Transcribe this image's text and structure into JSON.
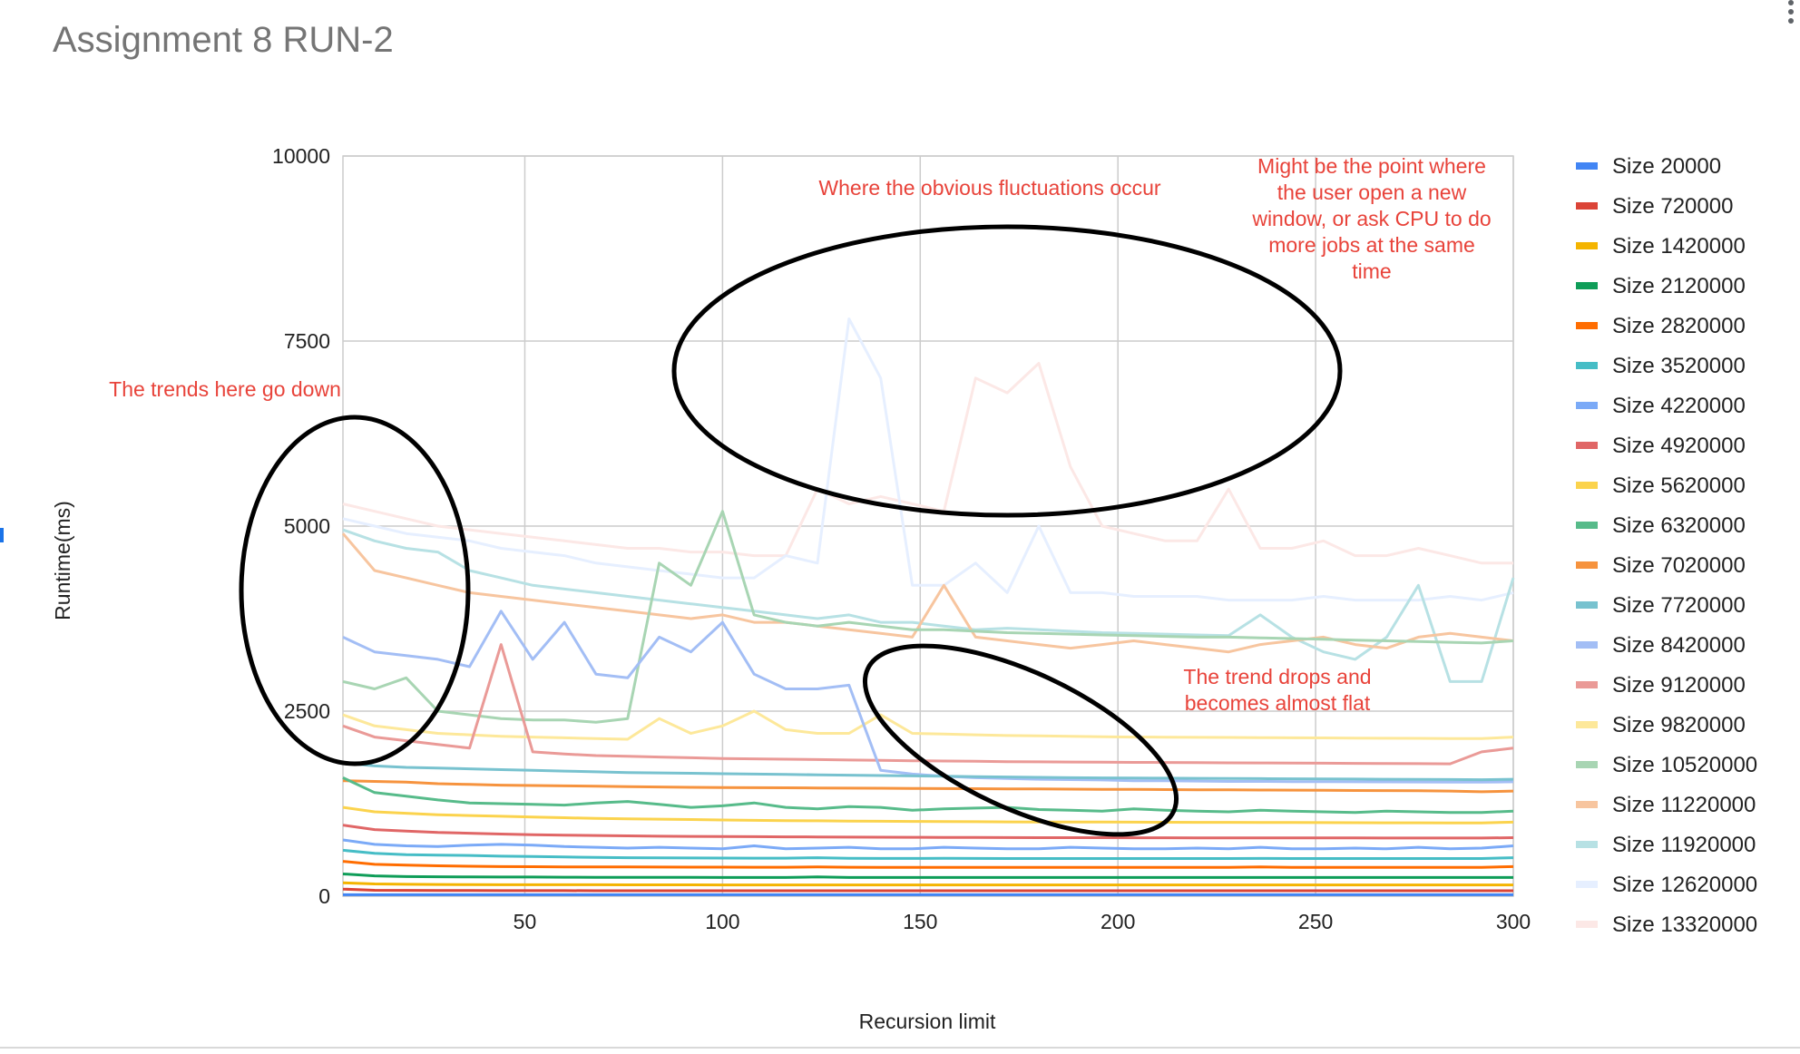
{
  "chart_data": {
    "type": "line",
    "title": "Assignment 8 RUN-2",
    "xlabel": "Recursion limit",
    "ylabel": "Runtime(ms)",
    "xlim": [
      4,
      300
    ],
    "ylim": [
      0,
      10000
    ],
    "xticks": [
      50,
      100,
      150,
      200,
      250,
      300
    ],
    "yticks": [
      0,
      2500,
      5000,
      7500,
      10000
    ],
    "grid": true,
    "legend_position": "right",
    "x_sample_step": 8,
    "x_sample_start": 4,
    "series": [
      {
        "name": "Size 20000",
        "color": "#4285f4",
        "values": [
          20,
          20,
          20,
          20,
          20,
          20,
          20,
          20,
          20,
          20,
          20,
          20,
          20,
          20,
          20,
          20,
          20,
          20,
          20,
          20,
          20,
          20,
          20,
          20,
          20,
          20,
          20,
          20,
          20,
          20,
          20,
          20,
          20,
          20,
          20,
          20,
          20,
          20
        ]
      },
      {
        "name": "Size 720000",
        "color": "#db4437",
        "values": [
          95,
          80,
          78,
          77,
          76,
          75,
          75,
          75,
          74,
          74,
          74,
          74,
          74,
          74,
          74,
          74,
          74,
          74,
          74,
          74,
          74,
          74,
          74,
          74,
          74,
          74,
          74,
          74,
          74,
          74,
          74,
          74,
          74,
          74,
          74,
          74,
          74,
          74
        ]
      },
      {
        "name": "Size 1420000",
        "color": "#f4b400",
        "values": [
          180,
          165,
          160,
          158,
          156,
          155,
          155,
          154,
          154,
          153,
          153,
          153,
          152,
          152,
          152,
          152,
          152,
          152,
          152,
          152,
          152,
          152,
          152,
          152,
          152,
          152,
          152,
          152,
          152,
          152,
          152,
          152,
          152,
          152,
          152,
          152,
          152,
          152
        ]
      },
      {
        "name": "Size 2120000",
        "color": "#0f9d58",
        "values": [
          300,
          275,
          265,
          262,
          260,
          258,
          258,
          256,
          255,
          255,
          254,
          254,
          253,
          253,
          253,
          260,
          253,
          252,
          252,
          252,
          252,
          252,
          252,
          252,
          252,
          252,
          252,
          252,
          252,
          252,
          252,
          252,
          252,
          252,
          252,
          252,
          252,
          252
        ]
      },
      {
        "name": "Size 2820000",
        "color": "#ff6d01",
        "values": [
          470,
          430,
          420,
          410,
          405,
          400,
          398,
          396,
          395,
          394,
          393,
          392,
          392,
          391,
          391,
          395,
          391,
          390,
          390,
          390,
          390,
          390,
          390,
          390,
          390,
          390,
          390,
          390,
          390,
          395,
          390,
          390,
          390,
          390,
          390,
          390,
          390,
          400
        ]
      },
      {
        "name": "Size 3520000",
        "color": "#46bdc6",
        "values": [
          620,
          580,
          560,
          555,
          550,
          540,
          535,
          530,
          525,
          520,
          518,
          516,
          515,
          514,
          513,
          520,
          512,
          510,
          510,
          512,
          510,
          508,
          508,
          508,
          508,
          508,
          508,
          508,
          508,
          510,
          508,
          508,
          508,
          508,
          508,
          508,
          508,
          520
        ]
      },
      {
        "name": "Size 4220000",
        "color": "#7baaf7",
        "values": [
          760,
          700,
          680,
          670,
          690,
          700,
          690,
          670,
          660,
          650,
          660,
          650,
          640,
          680,
          640,
          650,
          660,
          640,
          640,
          660,
          650,
          640,
          640,
          660,
          650,
          640,
          640,
          650,
          640,
          660,
          640,
          640,
          650,
          640,
          660,
          640,
          650,
          680
        ]
      },
      {
        "name": "Size 4920000",
        "color": "#e06666",
        "values": [
          960,
          900,
          880,
          860,
          850,
          840,
          830,
          825,
          820,
          815,
          810,
          808,
          806,
          804,
          802,
          800,
          798,
          796,
          795,
          794,
          793,
          792,
          791,
          790,
          790,
          789,
          789,
          788,
          788,
          788,
          787,
          787,
          787,
          786,
          786,
          786,
          786,
          790
        ]
      },
      {
        "name": "Size 5620000",
        "color": "#fbd34d",
        "values": [
          1200,
          1140,
          1120,
          1100,
          1090,
          1080,
          1070,
          1060,
          1050,
          1045,
          1040,
          1035,
          1030,
          1025,
          1020,
          1018,
          1015,
          1012,
          1010,
          1008,
          1006,
          1004,
          1003,
          1002,
          1001,
          1000,
          999,
          998,
          997,
          996,
          995,
          994,
          993,
          992,
          991,
          990,
          990,
          1000
        ]
      },
      {
        "name": "Size 6320000",
        "color": "#57bb8a",
        "values": [
          1600,
          1400,
          1350,
          1300,
          1260,
          1250,
          1240,
          1230,
          1260,
          1280,
          1240,
          1200,
          1220,
          1260,
          1200,
          1180,
          1210,
          1200,
          1160,
          1180,
          1190,
          1200,
          1170,
          1160,
          1150,
          1180,
          1160,
          1150,
          1140,
          1160,
          1150,
          1140,
          1130,
          1150,
          1140,
          1130,
          1130,
          1150
        ]
      },
      {
        "name": "Size 7020000",
        "color": "#f6933e",
        "values": [
          1560,
          1550,
          1540,
          1520,
          1510,
          1500,
          1495,
          1490,
          1485,
          1480,
          1475,
          1470,
          1468,
          1466,
          1464,
          1462,
          1460,
          1458,
          1456,
          1454,
          1452,
          1450,
          1448,
          1446,
          1444,
          1442,
          1440,
          1438,
          1436,
          1434,
          1432,
          1430,
          1428,
          1426,
          1424,
          1420,
          1410,
          1420
        ]
      },
      {
        "name": "Size 7720000",
        "color": "#78c2cf",
        "values": [
          1800,
          1760,
          1740,
          1730,
          1720,
          1710,
          1700,
          1690,
          1680,
          1670,
          1665,
          1660,
          1655,
          1650,
          1645,
          1640,
          1635,
          1630,
          1625,
          1620,
          1615,
          1610,
          1605,
          1600,
          1598,
          1596,
          1594,
          1592,
          1590,
          1588,
          1586,
          1584,
          1582,
          1580,
          1578,
          1576,
          1574,
          1580
        ]
      },
      {
        "name": "Size 8420000",
        "color": "#a3bef5",
        "values": [
          3500,
          3300,
          3250,
          3200,
          3100,
          3850,
          3200,
          3700,
          3000,
          2950,
          3500,
          3300,
          3700,
          3000,
          2800,
          2800,
          2850,
          1700,
          1650,
          1620,
          1600,
          1590,
          1580,
          1575,
          1570,
          1560,
          1560,
          1555,
          1550,
          1550,
          1548,
          1546,
          1545,
          1544,
          1543,
          1542,
          1541,
          1545
        ]
      },
      {
        "name": "Size 9120000",
        "color": "#ea9a97",
        "values": [
          2300,
          2150,
          2100,
          2050,
          2000,
          3400,
          1950,
          1920,
          1900,
          1890,
          1880,
          1870,
          1860,
          1855,
          1850,
          1845,
          1840,
          1835,
          1830,
          1826,
          1822,
          1818,
          1815,
          1812,
          1810,
          1808,
          1806,
          1804,
          1802,
          1800,
          1798,
          1796,
          1794,
          1792,
          1790,
          1788,
          1950,
          2000
        ]
      },
      {
        "name": "Size 9820000",
        "color": "#fde89a",
        "values": [
          2450,
          2300,
          2250,
          2200,
          2180,
          2160,
          2150,
          2140,
          2130,
          2120,
          2400,
          2200,
          2300,
          2500,
          2250,
          2200,
          2200,
          2450,
          2200,
          2190,
          2180,
          2170,
          2165,
          2160,
          2155,
          2150,
          2148,
          2146,
          2144,
          2142,
          2140,
          2138,
          2136,
          2134,
          2132,
          2130,
          2130,
          2150
        ]
      },
      {
        "name": "Size 10520000",
        "color": "#a8d5b3",
        "values": [
          2900,
          2800,
          2950,
          2500,
          2450,
          2400,
          2380,
          2380,
          2350,
          2400,
          4500,
          4200,
          5200,
          3800,
          3700,
          3650,
          3700,
          3650,
          3600,
          3600,
          3580,
          3560,
          3550,
          3540,
          3530,
          3520,
          3510,
          3500,
          3500,
          3490,
          3480,
          3470,
          3460,
          3450,
          3440,
          3430,
          3420,
          3450
        ]
      },
      {
        "name": "Size 11220000",
        "color": "#f7c59f",
        "values": [
          4900,
          4400,
          4300,
          4200,
          4100,
          4050,
          4000,
          3950,
          3900,
          3850,
          3800,
          3750,
          3800,
          3700,
          3700,
          3650,
          3600,
          3550,
          3500,
          4200,
          3500,
          3450,
          3400,
          3350,
          3400,
          3450,
          3400,
          3350,
          3300,
          3400,
          3450,
          3500,
          3400,
          3350,
          3500,
          3550,
          3500,
          3450
        ]
      },
      {
        "name": "Size 11920000",
        "color": "#b7e1e4",
        "values": [
          4950,
          4800,
          4700,
          4650,
          4400,
          4300,
          4200,
          4150,
          4100,
          4050,
          4000,
          3950,
          3900,
          3850,
          3800,
          3750,
          3800,
          3700,
          3700,
          3650,
          3600,
          3620,
          3600,
          3580,
          3560,
          3550,
          3540,
          3530,
          3520,
          3800,
          3500,
          3300,
          3200,
          3500,
          4200,
          2900,
          2900,
          4300
        ]
      },
      {
        "name": "Size 12620000",
        "color": "#e6efff",
        "values": [
          5100,
          5000,
          4900,
          4850,
          4800,
          4700,
          4650,
          4600,
          4500,
          4450,
          4400,
          4350,
          4300,
          4300,
          4600,
          4500,
          7800,
          7000,
          4200,
          4200,
          4500,
          4100,
          5000,
          4100,
          4100,
          4050,
          4050,
          4050,
          4000,
          4000,
          4000,
          4050,
          4000,
          4000,
          4000,
          4050,
          4000,
          4100
        ]
      },
      {
        "name": "Size 13320000",
        "color": "#fce8e6",
        "values": [
          5300,
          5200,
          5100,
          5000,
          4950,
          4900,
          4850,
          4800,
          4750,
          4700,
          4700,
          4650,
          4650,
          4600,
          4600,
          5500,
          5300,
          5400,
          5300,
          5200,
          7000,
          6800,
          7200,
          5800,
          5000,
          4900,
          4800,
          4800,
          5500,
          4700,
          4700,
          4800,
          4600,
          4600,
          4700,
          4600,
          4500,
          4500
        ]
      }
    ],
    "annotations": [
      {
        "lines": [
          "The trends here go down"
        ]
      },
      {
        "lines": [
          "Where the obvious fluctuations occur"
        ]
      },
      {
        "lines": [
          "Might be the point where",
          "the user open a new",
          "window, or ask CPU to do",
          "more jobs at the same",
          "time"
        ]
      },
      {
        "lines": [
          "The trend drops and",
          "becomes almost flat"
        ]
      }
    ]
  }
}
